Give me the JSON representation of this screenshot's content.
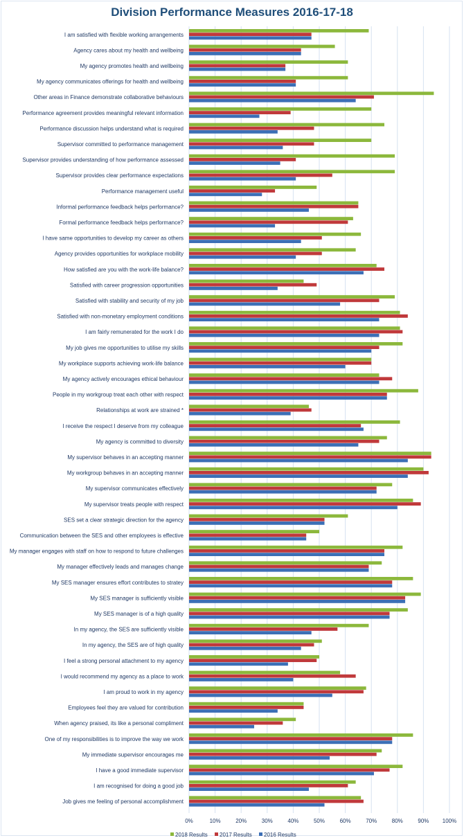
{
  "chart_data": {
    "type": "bar",
    "orientation": "horizontal",
    "title": "Division Performance Measures 2016-17-18",
    "xlabel": "",
    "ylabel": "",
    "xlim": [
      0,
      100
    ],
    "x_ticks": [
      "0%",
      "10%",
      "20%",
      "30%",
      "40%",
      "50%",
      "60%",
      "70%",
      "80%",
      "90%",
      "100%"
    ],
    "grid": true,
    "legend_position": "bottom",
    "categories": [
      "I am satisfied with flexible working arrangements",
      "Agency cares about my health and wellbeing",
      "My agency promotes health and wellbeing",
      "My agency communicates offerings for health and wellbeing",
      "Other areas in Finance demonstrate collaborative behaviours",
      "Performance agreement provides meaningful relevant information",
      "Performance discussion helps understand what is required",
      "Supervisor committed to performance management",
      "Supervisor provides understanding of how performance assessed",
      "Supervisor provides clear performance expectations",
      "Performance management useful",
      "Informal performance feedback helps performance?",
      "Formal performance feedback helps performance?",
      "I have same opportunities to develop my career as others",
      "Agency provides opportunities for workplace mobility",
      "How satisfied are you with the work-life balance?",
      "Satisfied with career progression opportunities",
      "Satisfied with stability and security of my job",
      "Satisfied with non-monetary employment conditions",
      "I am fairly remunerated for the work I do",
      "My job gives me opportunities to utilise my skills",
      "My workplace supports achieving work-life balance",
      "My agency actively encourages ethical behaviour ",
      "People in my workgroup treat each other with respect",
      "Relationships at work are strained *",
      "I receive the respect I deserve from my colleague",
      "My agency is committed to diversity",
      "My supervisor behaves in an accepting manner",
      "My workgroup behaves in an accepting manner",
      "My supervisor communicates effectively",
      "My supervisor treats people with respect",
      "SES set a clear strategic direction for the agency",
      "Communication between the SES and other employees is effective",
      "My manager engages with staff on how to respond to future challenges",
      "My manager effectively leads and manages change",
      "My SES manager ensures effort contributes to stratey",
      "My SES manager is sufficiently visible",
      "My SES manager is of a high quality",
      "In my agency, the SES are sufficiently visible",
      "In my agency, the SES are of high quality",
      "I feel a strong personal attachment to my agency",
      "I would recommend my agency as a place to work",
      "I am proud to work in my agency",
      "Employees feel they are valued for contribution",
      "When agency praised, its like a personal compliment",
      "One of my responsibilities is to improve the way we work",
      "My immediate supervisor encourages me",
      "I have a good immediate supervisor",
      "I am recognised for doing a good job",
      "Job gives me feeling of personal accomplishment"
    ],
    "series": [
      {
        "name": "2018 Results",
        "color": "#8cb83c",
        "values": [
          69,
          56,
          61,
          61,
          94,
          70,
          75,
          70,
          79,
          79,
          49,
          65,
          63,
          66,
          64,
          72,
          44,
          79,
          81,
          81,
          82,
          70,
          73,
          88,
          46,
          81,
          76,
          93,
          90,
          78,
          86,
          61,
          50,
          82,
          74,
          86,
          89,
          84,
          69,
          51,
          50,
          58,
          68,
          44,
          41,
          86,
          74,
          82,
          64,
          66
        ]
      },
      {
        "name": "2017 Results",
        "color": "#c0393b",
        "values": [
          47,
          43,
          37,
          41,
          71,
          39,
          48,
          48,
          41,
          55,
          33,
          65,
          61,
          51,
          51,
          75,
          49,
          73,
          84,
          82,
          73,
          70,
          78,
          76,
          47,
          66,
          73,
          93,
          92,
          72,
          89,
          52,
          45,
          75,
          69,
          78,
          83,
          77,
          57,
          48,
          49,
          64,
          67,
          44,
          36,
          78,
          72,
          77,
          61,
          67
        ]
      },
      {
        "name": "2016 Results",
        "color": "#3c6fb6",
        "values": [
          47,
          43,
          37,
          41,
          64,
          27,
          34,
          36,
          35,
          41,
          28,
          46,
          33,
          43,
          41,
          67,
          34,
          58,
          73,
          73,
          70,
          60,
          73,
          76,
          39,
          67,
          65,
          84,
          84,
          72,
          80,
          52,
          45,
          75,
          69,
          78,
          83,
          77,
          47,
          43,
          38,
          40,
          55,
          34,
          25,
          78,
          54,
          71,
          46,
          52
        ]
      }
    ]
  }
}
